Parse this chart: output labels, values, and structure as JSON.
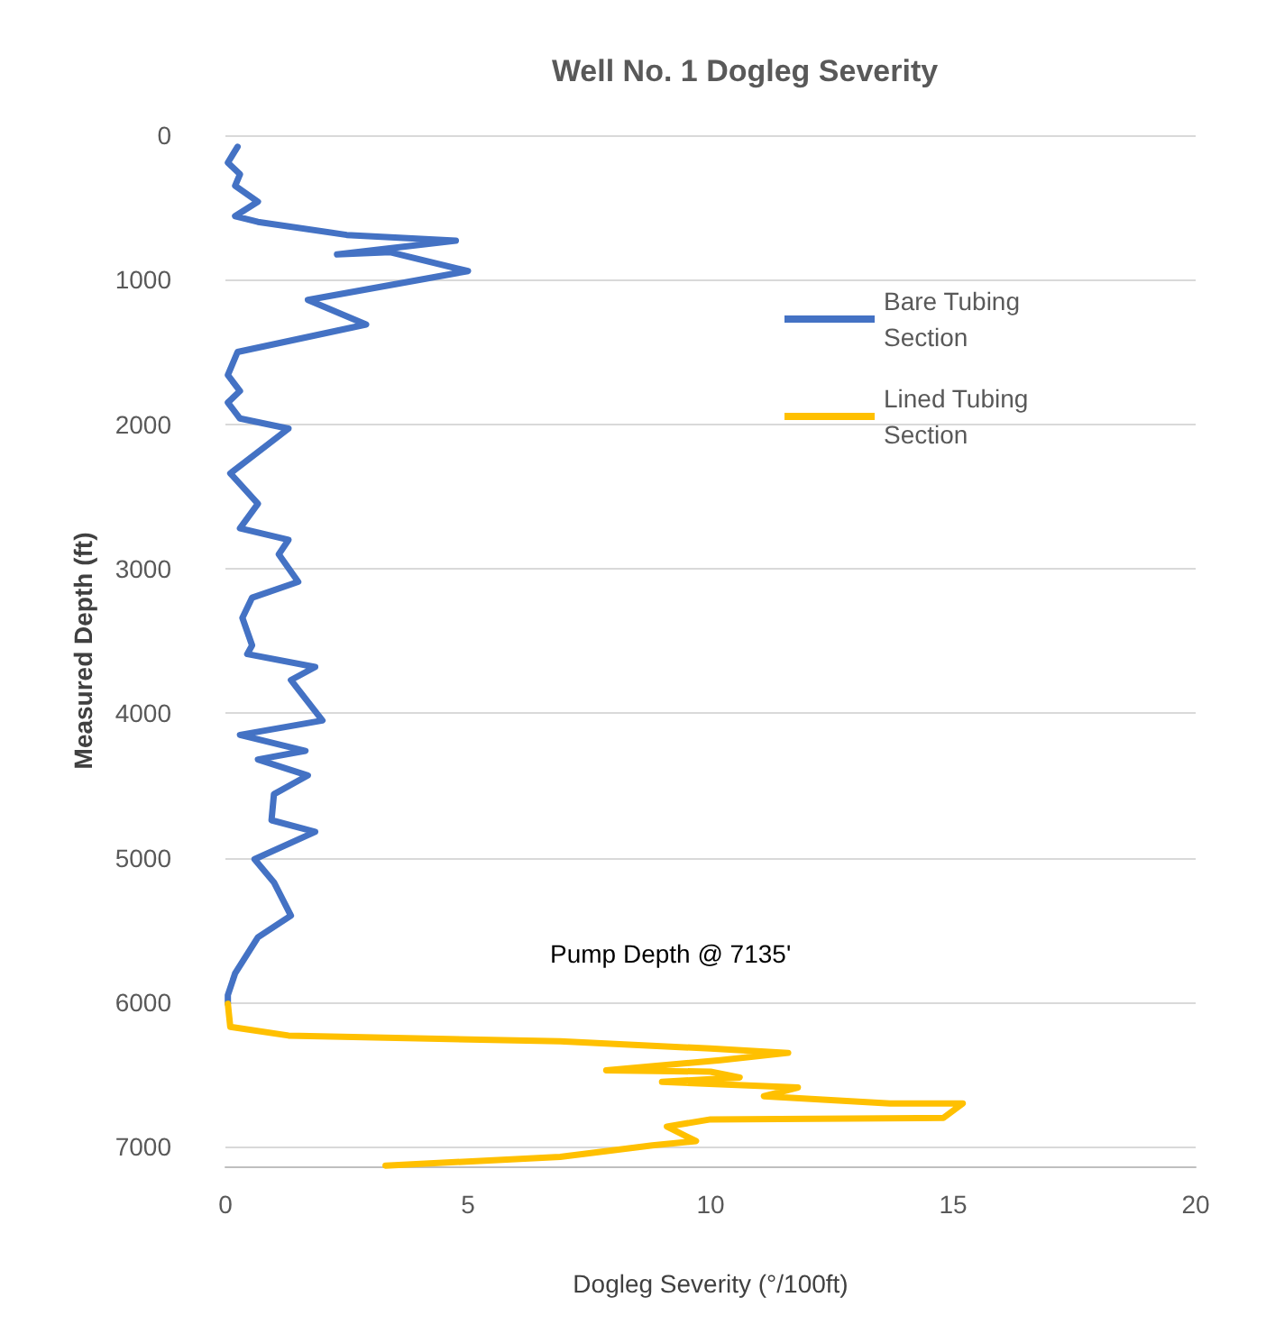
{
  "chart_data": {
    "type": "line",
    "title": "Well No. 1 Dogleg Severity",
    "xlabel": "Dogleg Severity (°/100ft)",
    "ylabel": "Measured Depth (ft)",
    "xlim": [
      0,
      20
    ],
    "xticks": [
      0,
      5,
      10,
      15,
      20
    ],
    "ylim": [
      7135,
      0
    ],
    "yticks": [
      0,
      1000,
      2000,
      3000,
      4000,
      5000,
      6000,
      7000
    ],
    "grid": "y",
    "legend": "top right",
    "marker": "none",
    "line_style": "solid",
    "annotations": [
      "Pump Depth @ 7135'"
    ],
    "series": [
      {
        "name": "Bare Tubing Section",
        "color": "#4472c4",
        "x": [
          0.25,
          0.05,
          0.3,
          0.2,
          0.67,
          0.2,
          0.67,
          2.5,
          4.75,
          2.3,
          3.4,
          5.0,
          1.7,
          2.9,
          0.25,
          0.05,
          0.3,
          0.05,
          0.3,
          1.3,
          0.1,
          0.67,
          0.3,
          1.3,
          1.1,
          1.5,
          0.55,
          0.35,
          0.55,
          0.45,
          1.85,
          1.35,
          2.0,
          0.3,
          1.65,
          0.67,
          1.7,
          1.0,
          0.95,
          1.85,
          0.6,
          1.0,
          1.35,
          0.67,
          0.2,
          0.05,
          0.05
        ],
        "values": [
          80,
          190,
          270,
          350,
          460,
          560,
          600,
          690,
          730,
          825,
          810,
          940,
          1140,
          1310,
          1500,
          1660,
          1770,
          1850,
          1960,
          2030,
          2340,
          2550,
          2720,
          2800,
          2900,
          3090,
          3200,
          3340,
          3530,
          3590,
          3680,
          3770,
          4050,
          4150,
          4260,
          4320,
          4430,
          4560,
          4740,
          4820,
          5010,
          5170,
          5400,
          5550,
          5800,
          5950,
          6010
        ]
      },
      {
        "name": "Lined Tubing Section",
        "color": "#ffc000",
        "x": [
          0.05,
          0.1,
          1.3,
          6.9,
          10.0,
          11.6,
          10.2,
          7.85,
          10.0,
          10.6,
          9.0,
          11.8,
          11.1,
          13.7,
          15.2,
          14.8,
          10.0,
          9.1,
          9.7,
          8.8,
          6.9,
          3.3
        ],
        "values": [
          6010,
          6170,
          6230,
          6270,
          6320,
          6350,
          6400,
          6470,
          6480,
          6520,
          6550,
          6590,
          6650,
          6700,
          6700,
          6800,
          6810,
          6860,
          6960,
          6990,
          7070,
          7130
        ]
      }
    ]
  }
}
